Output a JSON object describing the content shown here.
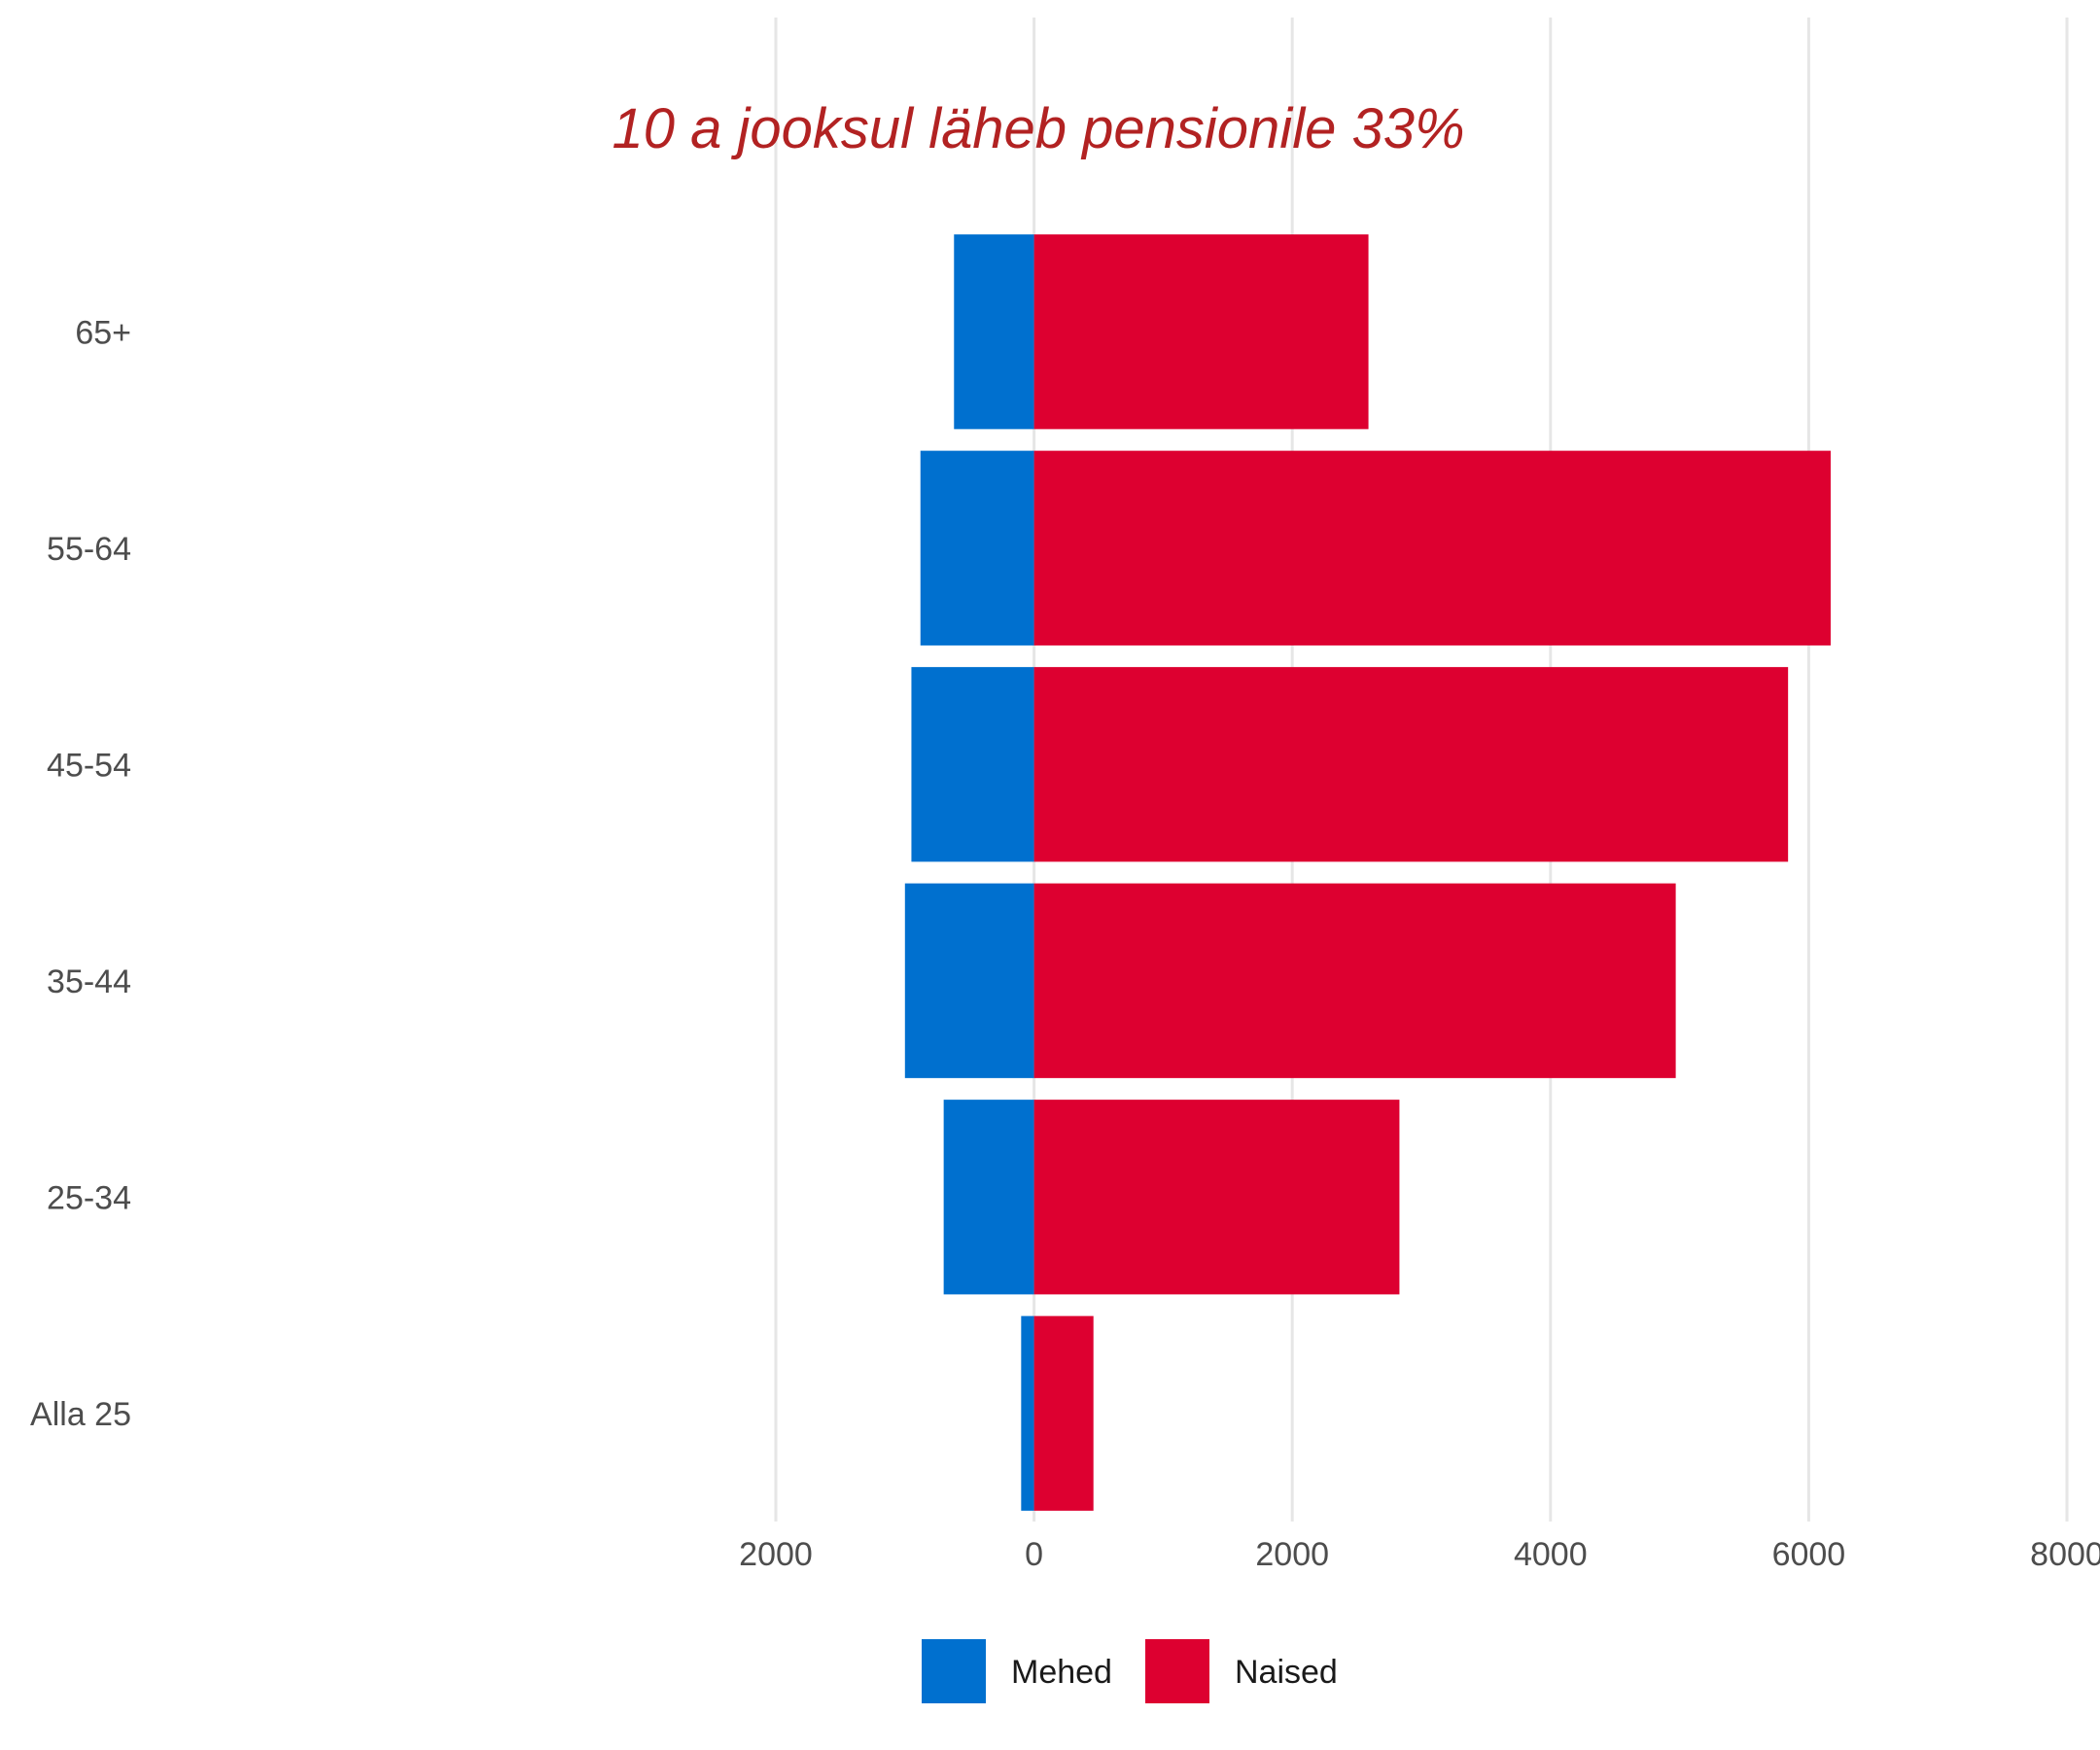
{
  "chart_data": {
    "type": "bar",
    "orientation": "horizontal",
    "stacked": "diverging",
    "title": "10 a jooksul läheb pensionile 33%",
    "title_color": "#B22222",
    "categories": [
      "Alla 25",
      "25-34",
      "35-44",
      "45-54",
      "55-64",
      "65+"
    ],
    "series": [
      {
        "name": "Mehed",
        "color": "#0070CF",
        "values": [
          -100,
          -700,
          -1000,
          -950,
          -880,
          -620
        ]
      },
      {
        "name": "Naised",
        "color": "#DD0030",
        "values": [
          460,
          2830,
          4970,
          5840,
          6170,
          2590
        ]
      }
    ],
    "x_ticks": [
      -2000,
      0,
      2000,
      4000,
      6000,
      8000
    ],
    "x_tick_labels": [
      "2000",
      "0",
      "2000",
      "4000",
      "6000",
      "8000"
    ],
    "xlim": [
      -2000,
      8000
    ],
    "grid": "vertical",
    "legend": "bottom"
  }
}
